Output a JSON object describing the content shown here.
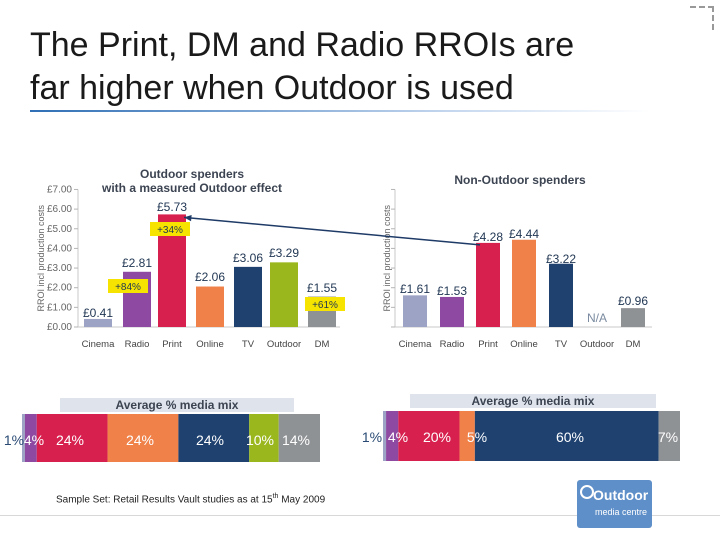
{
  "slide": {
    "title_line1": "The Print, DM and Radio RROIs are",
    "title_line2": "far higher when Outdoor is used",
    "footnote_pre": "Sample Set: Retail Results Vault studies as at 15",
    "footnote_sup": "th",
    "footnote_post": " May 2009",
    "logo_word": "Outdoor",
    "logo_sub": "media centre"
  },
  "colors": {
    "Cinema": "#9da3c4",
    "Radio": "#8e4aa3",
    "Print": "#d7204e",
    "Online": "#ef8149",
    "TV": "#1e4170",
    "Outdoor": "#9ab71d",
    "DM": "#8f9295",
    "mix_header": "#7d8fa8",
    "arrow": "#1e3a66",
    "uplift_box": "#f6e400"
  },
  "chart_data": [
    {
      "type": "bar",
      "title": "Outdoor spenders with a measured Outdoor effect",
      "title_line1": "Outdoor spenders",
      "title_line2": "with a measured Outdoor effect",
      "ylabel": "RROI incl production costs",
      "ylim": [
        0,
        7
      ],
      "yticks": [
        "£0.00",
        "£1.00",
        "£2.00",
        "£3.00",
        "£4.00",
        "£5.00",
        "£6.00",
        "£7.00"
      ],
      "categories": [
        "Cinema",
        "Radio",
        "Print",
        "Online",
        "TV",
        "Outdoor",
        "DM"
      ],
      "values": [
        0.41,
        2.81,
        5.73,
        2.06,
        3.06,
        3.29,
        1.55
      ],
      "labels": [
        "£0.41",
        "£2.81",
        "£5.73",
        "£2.06",
        "£3.06",
        "£3.29",
        "£1.55"
      ]
    },
    {
      "type": "bar",
      "title": "Non-Outdoor spenders",
      "ylabel": "RROI incl production costs",
      "ylim": [
        0,
        7
      ],
      "categories": [
        "Cinema",
        "Radio",
        "Print",
        "Online",
        "TV",
        "Outdoor",
        "DM"
      ],
      "values": [
        1.61,
        1.53,
        4.28,
        4.44,
        3.22,
        null,
        0.96
      ],
      "labels": [
        "£1.61",
        "£1.53",
        "£4.28",
        "£4.44",
        "£3.22",
        "N/A",
        "£0.96"
      ]
    },
    {
      "type": "stacked_bar",
      "title": "Average % media mix",
      "categories": [
        "Cinema",
        "Radio",
        "Print",
        "Online",
        "TV",
        "Outdoor",
        "DM"
      ],
      "values": [
        1,
        4,
        24,
        24,
        24,
        10,
        14
      ],
      "labels": [
        "1%",
        "4%",
        "24%",
        "24%",
        "24%",
        "10%",
        "14%"
      ]
    },
    {
      "type": "stacked_bar",
      "title": "Average % media mix",
      "categories": [
        "Cinema",
        "Radio",
        "Print",
        "Online",
        "TV",
        "Outdoor",
        "DM"
      ],
      "values": [
        1,
        4,
        20,
        5,
        60,
        0,
        7
      ],
      "labels": [
        "1%",
        "4%",
        "20%",
        "5%",
        "60%",
        "",
        "7%"
      ]
    }
  ],
  "uplifts": [
    {
      "label": "+34%",
      "from": "Print",
      "to": "Print"
    },
    {
      "label": "+84%",
      "from": "Radio",
      "to": "Radio"
    },
    {
      "label": "+61%",
      "from": "DM",
      "to": "DM"
    }
  ]
}
